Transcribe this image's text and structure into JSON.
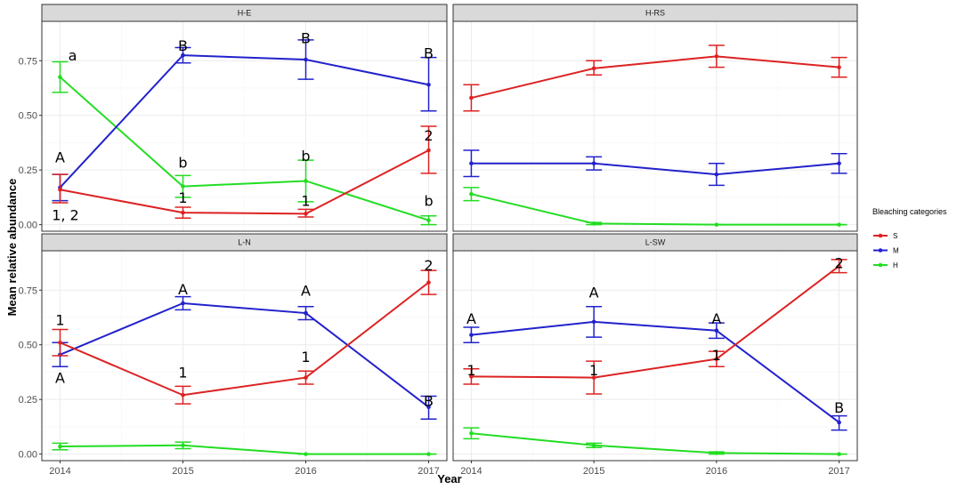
{
  "chart_data": {
    "type": "line",
    "xlabel": "Year",
    "ylabel": "Mean relative abundance",
    "x": [
      "2014",
      "2015",
      "2016",
      "2017"
    ],
    "ylim": [
      -0.03,
      0.93
    ],
    "yticks": [
      "0.00",
      "0.25",
      "0.50",
      "0.75"
    ],
    "ytick_values": [
      0,
      0.25,
      0.5,
      0.75
    ],
    "grid": true,
    "legend": {
      "title": "Bleaching categories",
      "position": "right",
      "entries": [
        {
          "label": "S",
          "color": "#dd2222"
        },
        {
          "label": "M",
          "color": "#2222cc"
        },
        {
          "label": "H",
          "color": "#22dd22"
        }
      ]
    },
    "panels": [
      {
        "title": "H-E",
        "series": [
          {
            "name": "S",
            "values": [
              0.16,
              0.055,
              0.05,
              0.34
            ],
            "err": [
              [
                0.1,
                0.23
              ],
              [
                0.03,
                0.08
              ],
              [
                0.035,
                0.07
              ],
              [
                0.235,
                0.45
              ]
            ]
          },
          {
            "name": "M",
            "values": [
              0.17,
              0.775,
              0.755,
              0.64
            ],
            "err": [
              [
                0.11,
                0.23
              ],
              [
                0.74,
                0.81
              ],
              [
                0.665,
                0.845
              ],
              [
                0.52,
                0.765
              ]
            ]
          },
          {
            "name": "H",
            "values": [
              0.675,
              0.175,
              0.2,
              0.02
            ],
            "err": [
              [
                0.605,
                0.745
              ],
              [
                0.125,
                0.225
              ],
              [
                0.105,
                0.295
              ],
              [
                0.0,
                0.04
              ]
            ]
          }
        ],
        "annotations": [
          {
            "text": "a",
            "x": 0,
            "y": 0.775
          },
          {
            "text": "A",
            "x": 0,
            "y": 0.31
          },
          {
            "text": "1, 2",
            "x": 0,
            "y": 0.045
          },
          {
            "text": "B",
            "x": 1,
            "y": 0.82
          },
          {
            "text": "b",
            "x": 1,
            "y": 0.285
          },
          {
            "text": "1",
            "x": 1,
            "y": 0.125
          },
          {
            "text": "B",
            "x": 2,
            "y": 0.855
          },
          {
            "text": "b",
            "x": 2,
            "y": 0.315
          },
          {
            "text": "1",
            "x": 2,
            "y": 0.11
          },
          {
            "text": "B",
            "x": 3,
            "y": 0.785
          },
          {
            "text": "2",
            "x": 3,
            "y": 0.41
          },
          {
            "text": "b",
            "x": 3,
            "y": 0.11
          }
        ]
      },
      {
        "title": "H-RS",
        "series": [
          {
            "name": "S",
            "values": [
              0.58,
              0.715,
              0.77,
              0.72
            ],
            "err": [
              [
                0.52,
                0.64
              ],
              [
                0.685,
                0.75
              ],
              [
                0.72,
                0.82
              ],
              [
                0.675,
                0.765
              ]
            ]
          },
          {
            "name": "M",
            "values": [
              0.28,
              0.28,
              0.23,
              0.28
            ],
            "err": [
              [
                0.22,
                0.34
              ],
              [
                0.25,
                0.31
              ],
              [
                0.18,
                0.28
              ],
              [
                0.235,
                0.325
              ]
            ]
          },
          {
            "name": "H",
            "values": [
              0.14,
              0.005,
              0.0,
              0.0
            ],
            "err": [
              [
                0.11,
                0.17
              ],
              [
                0.0,
                0.01
              ],
              [
                0.0,
                0.0
              ],
              [
                0.0,
                0.0
              ]
            ]
          }
        ],
        "annotations": []
      },
      {
        "title": "L-N",
        "series": [
          {
            "name": "S",
            "values": [
              0.51,
              0.27,
              0.35,
              0.785
            ],
            "err": [
              [
                0.45,
                0.57
              ],
              [
                0.23,
                0.31
              ],
              [
                0.32,
                0.38
              ],
              [
                0.73,
                0.84
              ]
            ]
          },
          {
            "name": "M",
            "values": [
              0.455,
              0.69,
              0.645,
              0.215
            ],
            "err": [
              [
                0.4,
                0.51
              ],
              [
                0.66,
                0.72
              ],
              [
                0.615,
                0.675
              ],
              [
                0.16,
                0.265
              ]
            ]
          },
          {
            "name": "H",
            "values": [
              0.035,
              0.04,
              0.0,
              0.0
            ],
            "err": [
              [
                0.02,
                0.05
              ],
              [
                0.025,
                0.055
              ],
              [
                0.0,
                0.0
              ],
              [
                0.0,
                0.0
              ]
            ]
          }
        ],
        "annotations": [
          {
            "text": "1",
            "x": 0,
            "y": 0.615
          },
          {
            "text": "A",
            "x": 0,
            "y": 0.35
          },
          {
            "text": "A",
            "x": 1,
            "y": 0.755
          },
          {
            "text": "1",
            "x": 1,
            "y": 0.375
          },
          {
            "text": "A",
            "x": 2,
            "y": 0.75
          },
          {
            "text": "1",
            "x": 2,
            "y": 0.445
          },
          {
            "text": "2",
            "x": 3,
            "y": 0.865
          },
          {
            "text": "B",
            "x": 3,
            "y": 0.245
          }
        ]
      },
      {
        "title": "L-SW",
        "series": [
          {
            "name": "S",
            "values": [
              0.355,
              0.35,
              0.435,
              0.86
            ],
            "err": [
              [
                0.32,
                0.39
              ],
              [
                0.275,
                0.425
              ],
              [
                0.4,
                0.47
              ],
              [
                0.83,
                0.89
              ]
            ]
          },
          {
            "name": "M",
            "values": [
              0.545,
              0.605,
              0.565,
              0.145
            ],
            "err": [
              [
                0.51,
                0.58
              ],
              [
                0.535,
                0.675
              ],
              [
                0.53,
                0.6
              ],
              [
                0.11,
                0.175
              ]
            ]
          },
          {
            "name": "H",
            "values": [
              0.095,
              0.04,
              0.005,
              0.0
            ],
            "err": [
              [
                0.07,
                0.12
              ],
              [
                0.03,
                0.05
              ],
              [
                0.0,
                0.01
              ],
              [
                0.0,
                0.0
              ]
            ]
          }
        ],
        "annotations": [
          {
            "text": "A",
            "x": 0,
            "y": 0.62
          },
          {
            "text": "1",
            "x": 0,
            "y": 0.385
          },
          {
            "text": "A",
            "x": 1,
            "y": 0.74
          },
          {
            "text": "1",
            "x": 1,
            "y": 0.385
          },
          {
            "text": "A",
            "x": 2,
            "y": 0.62
          },
          {
            "text": "1",
            "x": 2,
            "y": 0.455
          },
          {
            "text": "2",
            "x": 3,
            "y": 0.875
          },
          {
            "text": "B",
            "x": 3,
            "y": 0.215
          }
        ]
      }
    ]
  }
}
